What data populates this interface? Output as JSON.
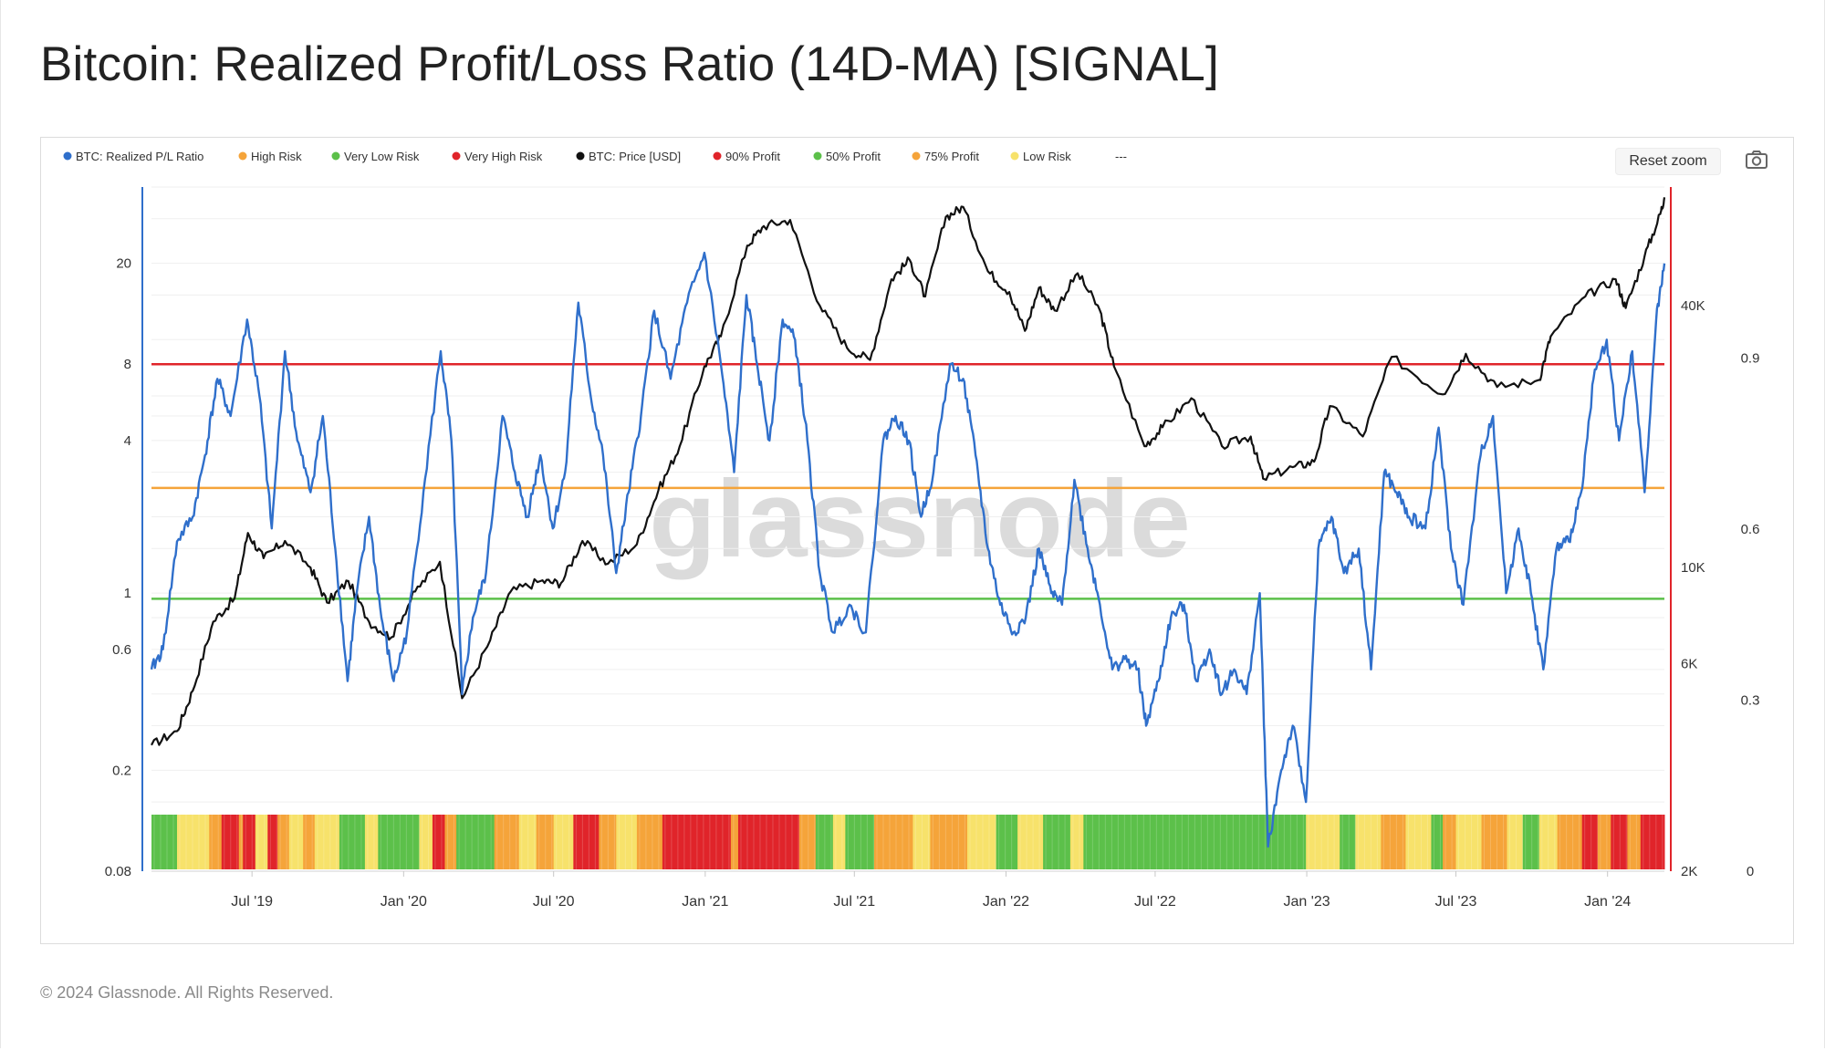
{
  "title": "Bitcoin: Realized Profit/Loss Ratio (14D-MA) [SIGNAL]",
  "footer": "© 2024 Glassnode. All Rights Reserved.",
  "toolbar": {
    "reset_zoom_label": "Reset zoom",
    "screenshot_icon": "camera-icon"
  },
  "watermark": "glassnode",
  "legend": [
    {
      "label": "BTC: Realized P/L Ratio",
      "color": "#2f6fcb"
    },
    {
      "label": "High Risk",
      "color": "#f5a43a"
    },
    {
      "label": "Very Low Risk",
      "color": "#5cc04a"
    },
    {
      "label": "Very High Risk",
      "color": "#e0242a"
    },
    {
      "label": "BTC: Price [USD]",
      "color": "#111111"
    },
    {
      "label": "90% Profit",
      "color": "#e0242a"
    },
    {
      "label": "50% Profit",
      "color": "#5cc04a"
    },
    {
      "label": "75% Profit",
      "color": "#f5a43a"
    },
    {
      "label": "Low Risk",
      "color": "#f7e26b"
    },
    {
      "label": "---",
      "color": ""
    }
  ],
  "chart_data": {
    "type": "line",
    "title": "Bitcoin: Realized Profit/Loss Ratio (14D-MA) [SIGNAL]",
    "x_tick_labels": [
      "Jul '19",
      "Jan '20",
      "Jul '20",
      "Jan '21",
      "Jul '21",
      "Jan '22",
      "Jul '22",
      "Jan '23",
      "Jul '23",
      "Jan '24"
    ],
    "x_range": [
      "2019-03-01",
      "2024-03-10"
    ],
    "y_left": {
      "scale": "log",
      "ticks": [
        "20",
        "8",
        "4",
        "1",
        "0.6",
        "0.2",
        "0.08"
      ],
      "tick_values": [
        20,
        8,
        4,
        1,
        0.6,
        0.2,
        0.08
      ],
      "range": [
        0.08,
        40
      ]
    },
    "y_right_price": {
      "scale": "log",
      "ticks": [
        "40K",
        "10K",
        "6K",
        "2K"
      ],
      "tick_values": [
        40000,
        10000,
        6000,
        2000
      ],
      "range": [
        2000,
        75000
      ]
    },
    "y_right_signal": {
      "scale": "linear",
      "ticks": [
        "0.9",
        "0.6",
        "0.3",
        "0"
      ],
      "tick_values": [
        0.9,
        0.6,
        0.3,
        0
      ],
      "range": [
        0,
        1.2
      ]
    },
    "thresholds": [
      {
        "name": "Very High Risk",
        "value": 8,
        "color": "#e0242a"
      },
      {
        "name": "High Risk",
        "value": 2.6,
        "color": "#f5a43a"
      },
      {
        "name": "Very Low Risk",
        "value": 0.95,
        "color": "#5cc04a"
      }
    ],
    "series": [
      {
        "name": "BTC: Realized P/L Ratio",
        "color": "#2f6fcb",
        "axis": "left",
        "points": [
          [
            "2019-03-01",
            0.5
          ],
          [
            "2019-03-15",
            0.6
          ],
          [
            "2019-04-01",
            1.6
          ],
          [
            "2019-04-20",
            2.0
          ],
          [
            "2019-05-05",
            3.5
          ],
          [
            "2019-05-20",
            7.0
          ],
          [
            "2019-06-05",
            5.0
          ],
          [
            "2019-06-25",
            12.0
          ],
          [
            "2019-07-10",
            6.0
          ],
          [
            "2019-07-25",
            1.8
          ],
          [
            "2019-08-10",
            9.0
          ],
          [
            "2019-08-25",
            4.0
          ],
          [
            "2019-09-10",
            2.5
          ],
          [
            "2019-09-25",
            5.0
          ],
          [
            "2019-10-10",
            1.5
          ],
          [
            "2019-10-25",
            0.45
          ],
          [
            "2019-11-05",
            1.0
          ],
          [
            "2019-11-20",
            2.0
          ],
          [
            "2019-12-05",
            0.8
          ],
          [
            "2019-12-20",
            0.45
          ],
          [
            "2020-01-05",
            0.7
          ],
          [
            "2020-01-25",
            2.5
          ],
          [
            "2020-02-15",
            9.0
          ],
          [
            "2020-02-28",
            4.0
          ],
          [
            "2020-03-12",
            0.4
          ],
          [
            "2020-03-25",
            0.8
          ],
          [
            "2020-04-10",
            1.2
          ],
          [
            "2020-04-30",
            5.0
          ],
          [
            "2020-05-15",
            3.0
          ],
          [
            "2020-05-30",
            2.0
          ],
          [
            "2020-06-15",
            3.5
          ],
          [
            "2020-06-30",
            1.8
          ],
          [
            "2020-07-15",
            3.0
          ],
          [
            "2020-07-31",
            14.0
          ],
          [
            "2020-08-15",
            6.0
          ],
          [
            "2020-08-30",
            3.5
          ],
          [
            "2020-09-15",
            1.2
          ],
          [
            "2020-09-30",
            2.5
          ],
          [
            "2020-10-15",
            5.0
          ],
          [
            "2020-10-31",
            13.0
          ],
          [
            "2020-11-20",
            7.0
          ],
          [
            "2020-12-10",
            14.0
          ],
          [
            "2020-12-31",
            22.0
          ],
          [
            "2021-01-20",
            8.0
          ],
          [
            "2021-02-05",
            3.0
          ],
          [
            "2021-02-20",
            15.0
          ],
          [
            "2021-03-05",
            8.0
          ],
          [
            "2021-03-20",
            4.0
          ],
          [
            "2021-04-05",
            12.0
          ],
          [
            "2021-04-20",
            10.0
          ],
          [
            "2021-05-05",
            4.0
          ],
          [
            "2021-05-20",
            1.2
          ],
          [
            "2021-06-05",
            0.7
          ],
          [
            "2021-06-25",
            0.9
          ],
          [
            "2021-07-15",
            0.7
          ],
          [
            "2021-08-05",
            4.0
          ],
          [
            "2021-08-20",
            5.0
          ],
          [
            "2021-09-05",
            4.0
          ],
          [
            "2021-09-20",
            2.0
          ],
          [
            "2021-10-05",
            3.0
          ],
          [
            "2021-10-25",
            8.0
          ],
          [
            "2021-11-10",
            7.0
          ],
          [
            "2021-11-25",
            3.5
          ],
          [
            "2021-12-10",
            1.5
          ],
          [
            "2021-12-25",
            0.9
          ],
          [
            "2022-01-10",
            0.7
          ],
          [
            "2022-01-25",
            0.8
          ],
          [
            "2022-02-10",
            1.5
          ],
          [
            "2022-02-25",
            1.0
          ],
          [
            "2022-03-10",
            0.9
          ],
          [
            "2022-03-25",
            2.8
          ],
          [
            "2022-04-10",
            1.5
          ],
          [
            "2022-04-25",
            0.9
          ],
          [
            "2022-05-10",
            0.5
          ],
          [
            "2022-05-25",
            0.55
          ],
          [
            "2022-06-10",
            0.5
          ],
          [
            "2022-06-20",
            0.3
          ],
          [
            "2022-07-05",
            0.45
          ],
          [
            "2022-07-20",
            0.8
          ],
          [
            "2022-08-05",
            0.9
          ],
          [
            "2022-08-20",
            0.45
          ],
          [
            "2022-09-05",
            0.6
          ],
          [
            "2022-09-20",
            0.4
          ],
          [
            "2022-10-05",
            0.5
          ],
          [
            "2022-10-20",
            0.4
          ],
          [
            "2022-11-05",
            1.0
          ],
          [
            "2022-11-15",
            0.1
          ],
          [
            "2022-12-01",
            0.2
          ],
          [
            "2022-12-15",
            0.3
          ],
          [
            "2022-12-31",
            0.15
          ],
          [
            "2023-01-15",
            1.5
          ],
          [
            "2023-01-31",
            2.0
          ],
          [
            "2023-02-15",
            1.2
          ],
          [
            "2023-03-05",
            1.5
          ],
          [
            "2023-03-20",
            0.5
          ],
          [
            "2023-04-05",
            3.0
          ],
          [
            "2023-04-20",
            2.5
          ],
          [
            "2023-05-05",
            2.0
          ],
          [
            "2023-05-25",
            1.8
          ],
          [
            "2023-06-10",
            4.5
          ],
          [
            "2023-06-25",
            1.5
          ],
          [
            "2023-07-10",
            0.9
          ],
          [
            "2023-07-31",
            3.5
          ],
          [
            "2023-08-15",
            5.0
          ],
          [
            "2023-08-31",
            1.0
          ],
          [
            "2023-09-15",
            1.8
          ],
          [
            "2023-09-30",
            1.0
          ],
          [
            "2023-10-15",
            0.5
          ],
          [
            "2023-10-31",
            1.5
          ],
          [
            "2023-11-15",
            1.6
          ],
          [
            "2023-11-30",
            2.5
          ],
          [
            "2023-12-15",
            7.0
          ],
          [
            "2023-12-31",
            10.0
          ],
          [
            "2024-01-15",
            4.0
          ],
          [
            "2024-01-31",
            9.0
          ],
          [
            "2024-02-15",
            2.5
          ],
          [
            "2024-02-29",
            12.0
          ],
          [
            "2024-03-10",
            20.0
          ]
        ]
      },
      {
        "name": "BTC: Price [USD]",
        "color": "#111111",
        "axis": "right_price",
        "points": [
          [
            "2019-03-01",
            3900
          ],
          [
            "2019-04-01",
            4200
          ],
          [
            "2019-04-20",
            5200
          ],
          [
            "2019-05-15",
            7500
          ],
          [
            "2019-06-10",
            8500
          ],
          [
            "2019-06-26",
            12000
          ],
          [
            "2019-07-15",
            10500
          ],
          [
            "2019-08-10",
            11500
          ],
          [
            "2019-09-10",
            10000
          ],
          [
            "2019-09-30",
            8300
          ],
          [
            "2019-10-26",
            9300
          ],
          [
            "2019-11-20",
            7500
          ],
          [
            "2019-12-17",
            6900
          ],
          [
            "2020-01-15",
            8800
          ],
          [
            "2020-02-14",
            10300
          ],
          [
            "2020-03-12",
            5000
          ],
          [
            "2020-04-15",
            6800
          ],
          [
            "2020-05-10",
            8800
          ],
          [
            "2020-06-15",
            9300
          ],
          [
            "2020-07-10",
            9200
          ],
          [
            "2020-08-05",
            11500
          ],
          [
            "2020-09-05",
            10200
          ],
          [
            "2020-10-10",
            11300
          ],
          [
            "2020-11-05",
            15000
          ],
          [
            "2020-12-01",
            19000
          ],
          [
            "2020-12-31",
            29000
          ],
          [
            "2021-01-20",
            34000
          ],
          [
            "2021-02-21",
            55000
          ],
          [
            "2021-03-13",
            61000
          ],
          [
            "2021-04-14",
            63000
          ],
          [
            "2021-05-20",
            40000
          ],
          [
            "2021-06-22",
            32000
          ],
          [
            "2021-07-20",
            30000
          ],
          [
            "2021-08-15",
            46000
          ],
          [
            "2021-09-06",
            51000
          ],
          [
            "2021-09-25",
            42000
          ],
          [
            "2021-10-20",
            64000
          ],
          [
            "2021-11-10",
            67500
          ],
          [
            "2021-12-10",
            48000
          ],
          [
            "2022-01-05",
            43000
          ],
          [
            "2022-01-24",
            35000
          ],
          [
            "2022-02-10",
            44000
          ],
          [
            "2022-03-01",
            39000
          ],
          [
            "2022-03-29",
            47500
          ],
          [
            "2022-04-25",
            39000
          ],
          [
            "2022-05-12",
            29000
          ],
          [
            "2022-06-18",
            19000
          ],
          [
            "2022-07-10",
            21000
          ],
          [
            "2022-08-14",
            24500
          ],
          [
            "2022-09-20",
            19000
          ],
          [
            "2022-10-25",
            20000
          ],
          [
            "2022-11-09",
            16000
          ],
          [
            "2022-12-15",
            17000
          ],
          [
            "2023-01-10",
            17500
          ],
          [
            "2023-01-29",
            23500
          ],
          [
            "2023-03-10",
            20000
          ],
          [
            "2023-04-14",
            30500
          ],
          [
            "2023-06-15",
            25000
          ],
          [
            "2023-07-13",
            31000
          ],
          [
            "2023-08-20",
            26000
          ],
          [
            "2023-10-10",
            27000
          ],
          [
            "2023-10-24",
            34000
          ],
          [
            "2023-12-05",
            42000
          ],
          [
            "2024-01-11",
            46000
          ],
          [
            "2024-01-23",
            39500
          ],
          [
            "2024-02-15",
            52000
          ],
          [
            "2024-03-05",
            65000
          ],
          [
            "2024-03-10",
            71000
          ]
        ]
      }
    ],
    "signal_bands": {
      "name": "Risk signal",
      "colors": {
        "very_low": "#5cc04a",
        "low": "#f7e26b",
        "high": "#f5a43a",
        "very_high": "#e0242a"
      },
      "segments": [
        [
          "2019-03-01",
          "very_low"
        ],
        [
          "2019-04-01",
          "low"
        ],
        [
          "2019-05-10",
          "high"
        ],
        [
          "2019-05-25",
          "very_high"
        ],
        [
          "2019-06-15",
          "high"
        ],
        [
          "2019-06-20",
          "very_high"
        ],
        [
          "2019-07-05",
          "low"
        ],
        [
          "2019-07-20",
          "very_high"
        ],
        [
          "2019-08-01",
          "high"
        ],
        [
          "2019-08-15",
          "low"
        ],
        [
          "2019-09-01",
          "high"
        ],
        [
          "2019-09-15",
          "low"
        ],
        [
          "2019-10-15",
          "very_low"
        ],
        [
          "2019-11-15",
          "low"
        ],
        [
          "2019-12-01",
          "very_low"
        ],
        [
          "2020-01-20",
          "low"
        ],
        [
          "2020-02-05",
          "very_high"
        ],
        [
          "2020-02-20",
          "high"
        ],
        [
          "2020-03-05",
          "very_low"
        ],
        [
          "2020-04-20",
          "high"
        ],
        [
          "2020-05-20",
          "low"
        ],
        [
          "2020-06-10",
          "high"
        ],
        [
          "2020-07-01",
          "low"
        ],
        [
          "2020-07-25",
          "very_high"
        ],
        [
          "2020-08-25",
          "high"
        ],
        [
          "2020-09-15",
          "low"
        ],
        [
          "2020-10-10",
          "high"
        ],
        [
          "2020-11-10",
          "very_high"
        ],
        [
          "2021-02-01",
          "high"
        ],
        [
          "2021-02-10",
          "very_high"
        ],
        [
          "2021-04-25",
          "high"
        ],
        [
          "2021-05-15",
          "very_low"
        ],
        [
          "2021-06-05",
          "low"
        ],
        [
          "2021-06-20",
          "very_low"
        ],
        [
          "2021-07-25",
          "high"
        ],
        [
          "2021-09-10",
          "low"
        ],
        [
          "2021-10-01",
          "high"
        ],
        [
          "2021-11-15",
          "low"
        ],
        [
          "2021-12-20",
          "very_low"
        ],
        [
          "2022-01-15",
          "low"
        ],
        [
          "2022-02-15",
          "very_low"
        ],
        [
          "2022-03-20",
          "low"
        ],
        [
          "2022-04-05",
          "very_low"
        ],
        [
          "2022-12-31",
          "low"
        ],
        [
          "2023-02-10",
          "very_low"
        ],
        [
          "2023-03-01",
          "low"
        ],
        [
          "2023-04-01",
          "high"
        ],
        [
          "2023-05-01",
          "low"
        ],
        [
          "2023-06-01",
          "very_low"
        ],
        [
          "2023-06-15",
          "high"
        ],
        [
          "2023-07-01",
          "low"
        ],
        [
          "2023-08-01",
          "high"
        ],
        [
          "2023-09-01",
          "low"
        ],
        [
          "2023-09-20",
          "very_low"
        ],
        [
          "2023-10-10",
          "low"
        ],
        [
          "2023-11-01",
          "high"
        ],
        [
          "2023-12-01",
          "very_high"
        ],
        [
          "2023-12-20",
          "high"
        ],
        [
          "2024-01-05",
          "very_high"
        ],
        [
          "2024-01-25",
          "high"
        ],
        [
          "2024-02-10",
          "very_high"
        ],
        [
          "2024-03-10",
          "very_high"
        ]
      ]
    }
  }
}
